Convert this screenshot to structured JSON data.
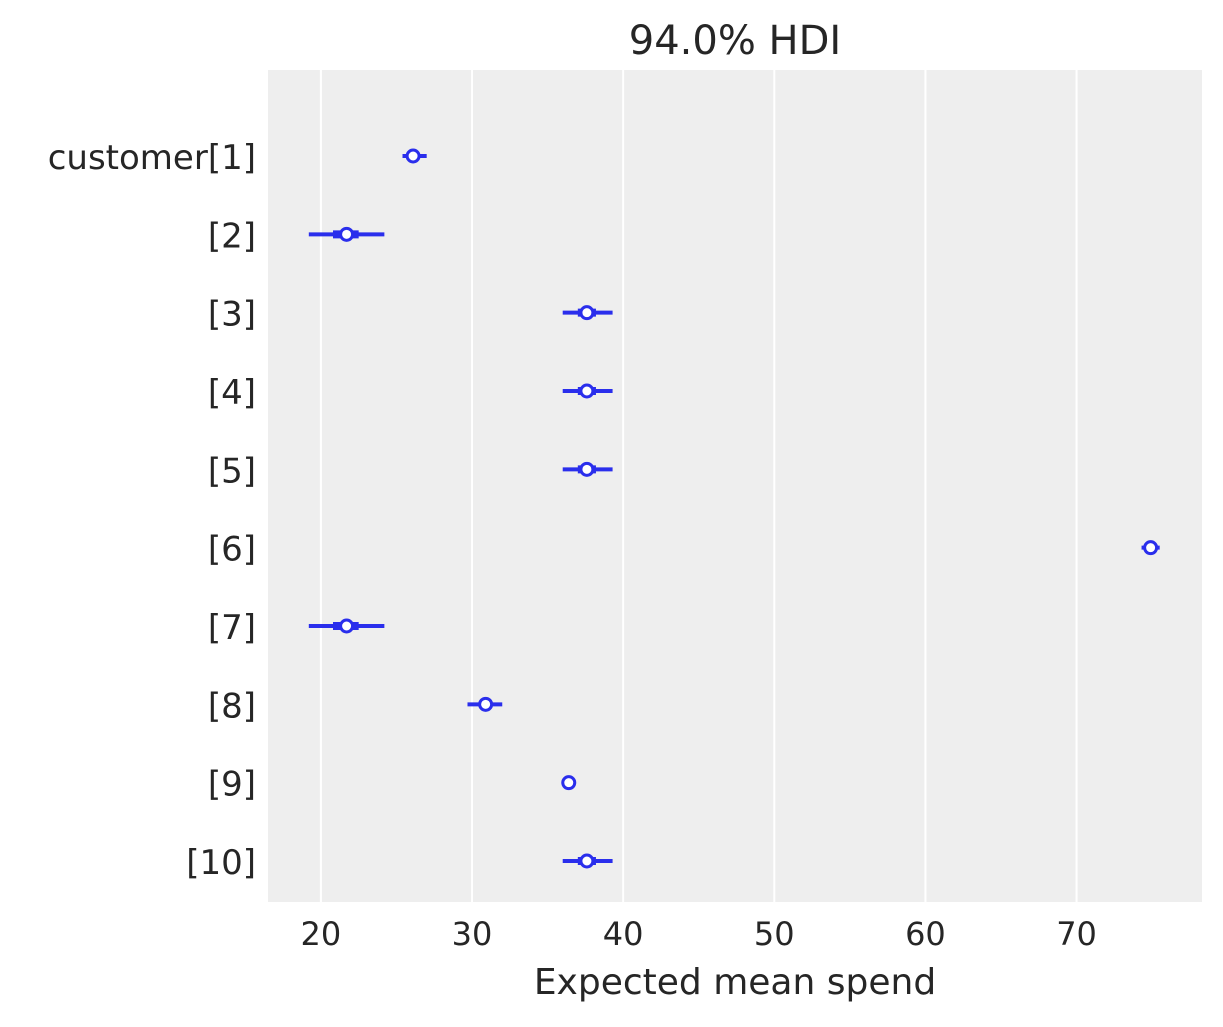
{
  "chart_data": {
    "type": "forest",
    "title": "94.0% HDI",
    "xlabel": "Expected mean spend",
    "ylabel": "",
    "xlim": [
      16.5,
      78.3
    ],
    "xticks": [
      20,
      30,
      40,
      50,
      60,
      70
    ],
    "grid": "vertical",
    "background_color": "#eeeeee",
    "series_color": "#2a2eec",
    "rows": [
      {
        "label": "customer[1]",
        "mean": 26.1,
        "hdi_94": [
          25.4,
          27.0
        ],
        "inner": [
          25.8,
          26.4
        ]
      },
      {
        "label": "[2]",
        "mean": 21.7,
        "hdi_94": [
          19.2,
          24.2
        ],
        "inner": [
          20.8,
          22.5
        ]
      },
      {
        "label": "[3]",
        "mean": 37.6,
        "hdi_94": [
          36.0,
          39.3
        ],
        "inner": [
          37.0,
          38.2
        ]
      },
      {
        "label": "[4]",
        "mean": 37.6,
        "hdi_94": [
          36.0,
          39.3
        ],
        "inner": [
          37.0,
          38.2
        ]
      },
      {
        "label": "[5]",
        "mean": 37.6,
        "hdi_94": [
          36.0,
          39.3
        ],
        "inner": [
          37.0,
          38.2
        ]
      },
      {
        "label": "[6]",
        "mean": 74.9,
        "hdi_94": [
          74.3,
          75.5
        ],
        "inner": [
          74.6,
          75.2
        ]
      },
      {
        "label": "[7]",
        "mean": 21.7,
        "hdi_94": [
          19.2,
          24.2
        ],
        "inner": [
          20.8,
          22.5
        ]
      },
      {
        "label": "[8]",
        "mean": 30.9,
        "hdi_94": [
          29.7,
          32.0
        ],
        "inner": [
          30.5,
          31.3
        ]
      },
      {
        "label": "[9]",
        "mean": 36.4,
        "hdi_94": [
          36.3,
          36.5
        ],
        "inner": [
          36.35,
          36.45
        ]
      },
      {
        "label": "[10]",
        "mean": 37.6,
        "hdi_94": [
          36.0,
          39.3
        ],
        "inner": [
          37.0,
          38.2
        ]
      }
    ]
  }
}
